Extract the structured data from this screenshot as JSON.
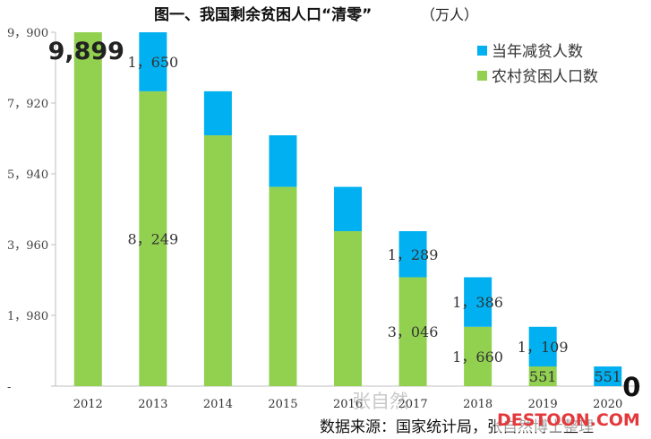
{
  "chart_data": {
    "type": "bar",
    "stacked": true,
    "title": "图一、我国剩余贫困人口“清零”",
    "unit": "（万人）",
    "categories": [
      "2012",
      "2013",
      "2014",
      "2015",
      "2016",
      "2017",
      "2018",
      "2019",
      "2020"
    ],
    "series": [
      {
        "name": "农村贫困人口数",
        "color": "#92d050",
        "values": [
          9899,
          8249,
          7017,
          5575,
          4335,
          3046,
          1660,
          551,
          0
        ]
      },
      {
        "name": "当年减贫人数",
        "color": "#00b0f0",
        "values": [
          0,
          1650,
          1232,
          1442,
          1240,
          1289,
          1386,
          1109,
          551
        ]
      }
    ],
    "yticks": [
      "9，900",
      "7，920",
      "5，940",
      "3，960",
      "1，980",
      "-"
    ],
    "ytick_values": [
      9900,
      7920,
      5940,
      3960,
      1980,
      0
    ],
    "ylim": [
      0,
      9900
    ],
    "legend": [
      "当年减贫人数",
      "农村贫困人口数"
    ],
    "legend_position": "top-right",
    "data_labels": [
      {
        "text": "9,899",
        "category": "2012",
        "series": "农村贫困人口数",
        "style": "big"
      },
      {
        "text": "1，650",
        "category": "2013",
        "series": "当年减贫人数",
        "style": "normal"
      },
      {
        "text": "8，249",
        "category": "2013",
        "series": "农村贫困人口数",
        "style": "normal"
      },
      {
        "text": "1，289",
        "category": "2017",
        "series": "当年减贫人数",
        "style": "normal"
      },
      {
        "text": "3，046",
        "category": "2017",
        "series": "农村贫困人口数",
        "style": "normal"
      },
      {
        "text": "1，386",
        "category": "2018",
        "series": "当年减贫人数",
        "style": "normal"
      },
      {
        "text": "1，660",
        "category": "2018",
        "series": "农村贫困人口数",
        "style": "normal"
      },
      {
        "text": "1，109",
        "category": "2019",
        "series": "当年减贫人数",
        "style": "normal"
      },
      {
        "text": "551",
        "category": "2019",
        "series": "农村贫困人口数",
        "style": "normal"
      },
      {
        "text": "551",
        "category": "2020",
        "series": "当年减贫人数",
        "style": "normal"
      },
      {
        "text": "0",
        "category": "2020",
        "series": "农村贫困人口数",
        "style": "big-right"
      }
    ]
  },
  "source": "数据来源：国家统计局，张自然博士整理",
  "watermarks": {
    "author": "张自然",
    "site": "DESTOON.COM"
  }
}
